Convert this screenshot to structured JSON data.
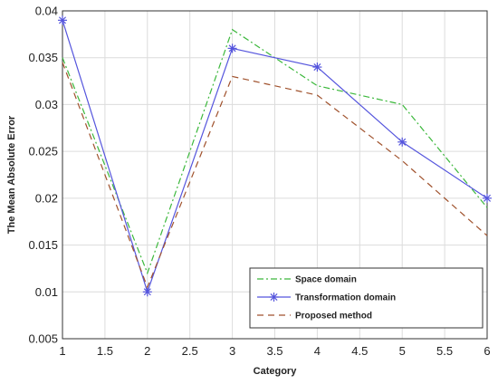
{
  "chart_data": {
    "type": "line",
    "title": "",
    "xlabel": "Category",
    "ylabel": "The Mean Absolute Error",
    "xlim": [
      1,
      6
    ],
    "ylim": [
      0.005,
      0.04
    ],
    "x_ticks": [
      "1",
      "1.5",
      "2",
      "2.5",
      "3",
      "3.5",
      "4",
      "4.5",
      "5",
      "5.5",
      "6"
    ],
    "y_ticks": [
      "0.005",
      "0.01",
      "0.015",
      "0.02",
      "0.025",
      "0.03",
      "0.035",
      "0.04"
    ],
    "grid": true,
    "legend_position": "bottom-right",
    "x": [
      1,
      2,
      3,
      4,
      5,
      6
    ],
    "series": [
      {
        "name": "Space domain",
        "values": [
          0.035,
          0.012,
          0.038,
          0.032,
          0.03,
          0.019
        ],
        "color": "#3cb83c",
        "style": "dash-dot",
        "marker": "none"
      },
      {
        "name": "Transformation domain",
        "values": [
          0.039,
          0.01,
          0.036,
          0.034,
          0.026,
          0.02
        ],
        "color": "#5555dd",
        "style": "solid",
        "marker": "asterisk"
      },
      {
        "name": "Proposed method",
        "values": [
          0.0345,
          0.0105,
          0.033,
          0.031,
          0.024,
          0.016
        ],
        "color": "#a0522d",
        "style": "dashed",
        "marker": "none"
      }
    ]
  }
}
